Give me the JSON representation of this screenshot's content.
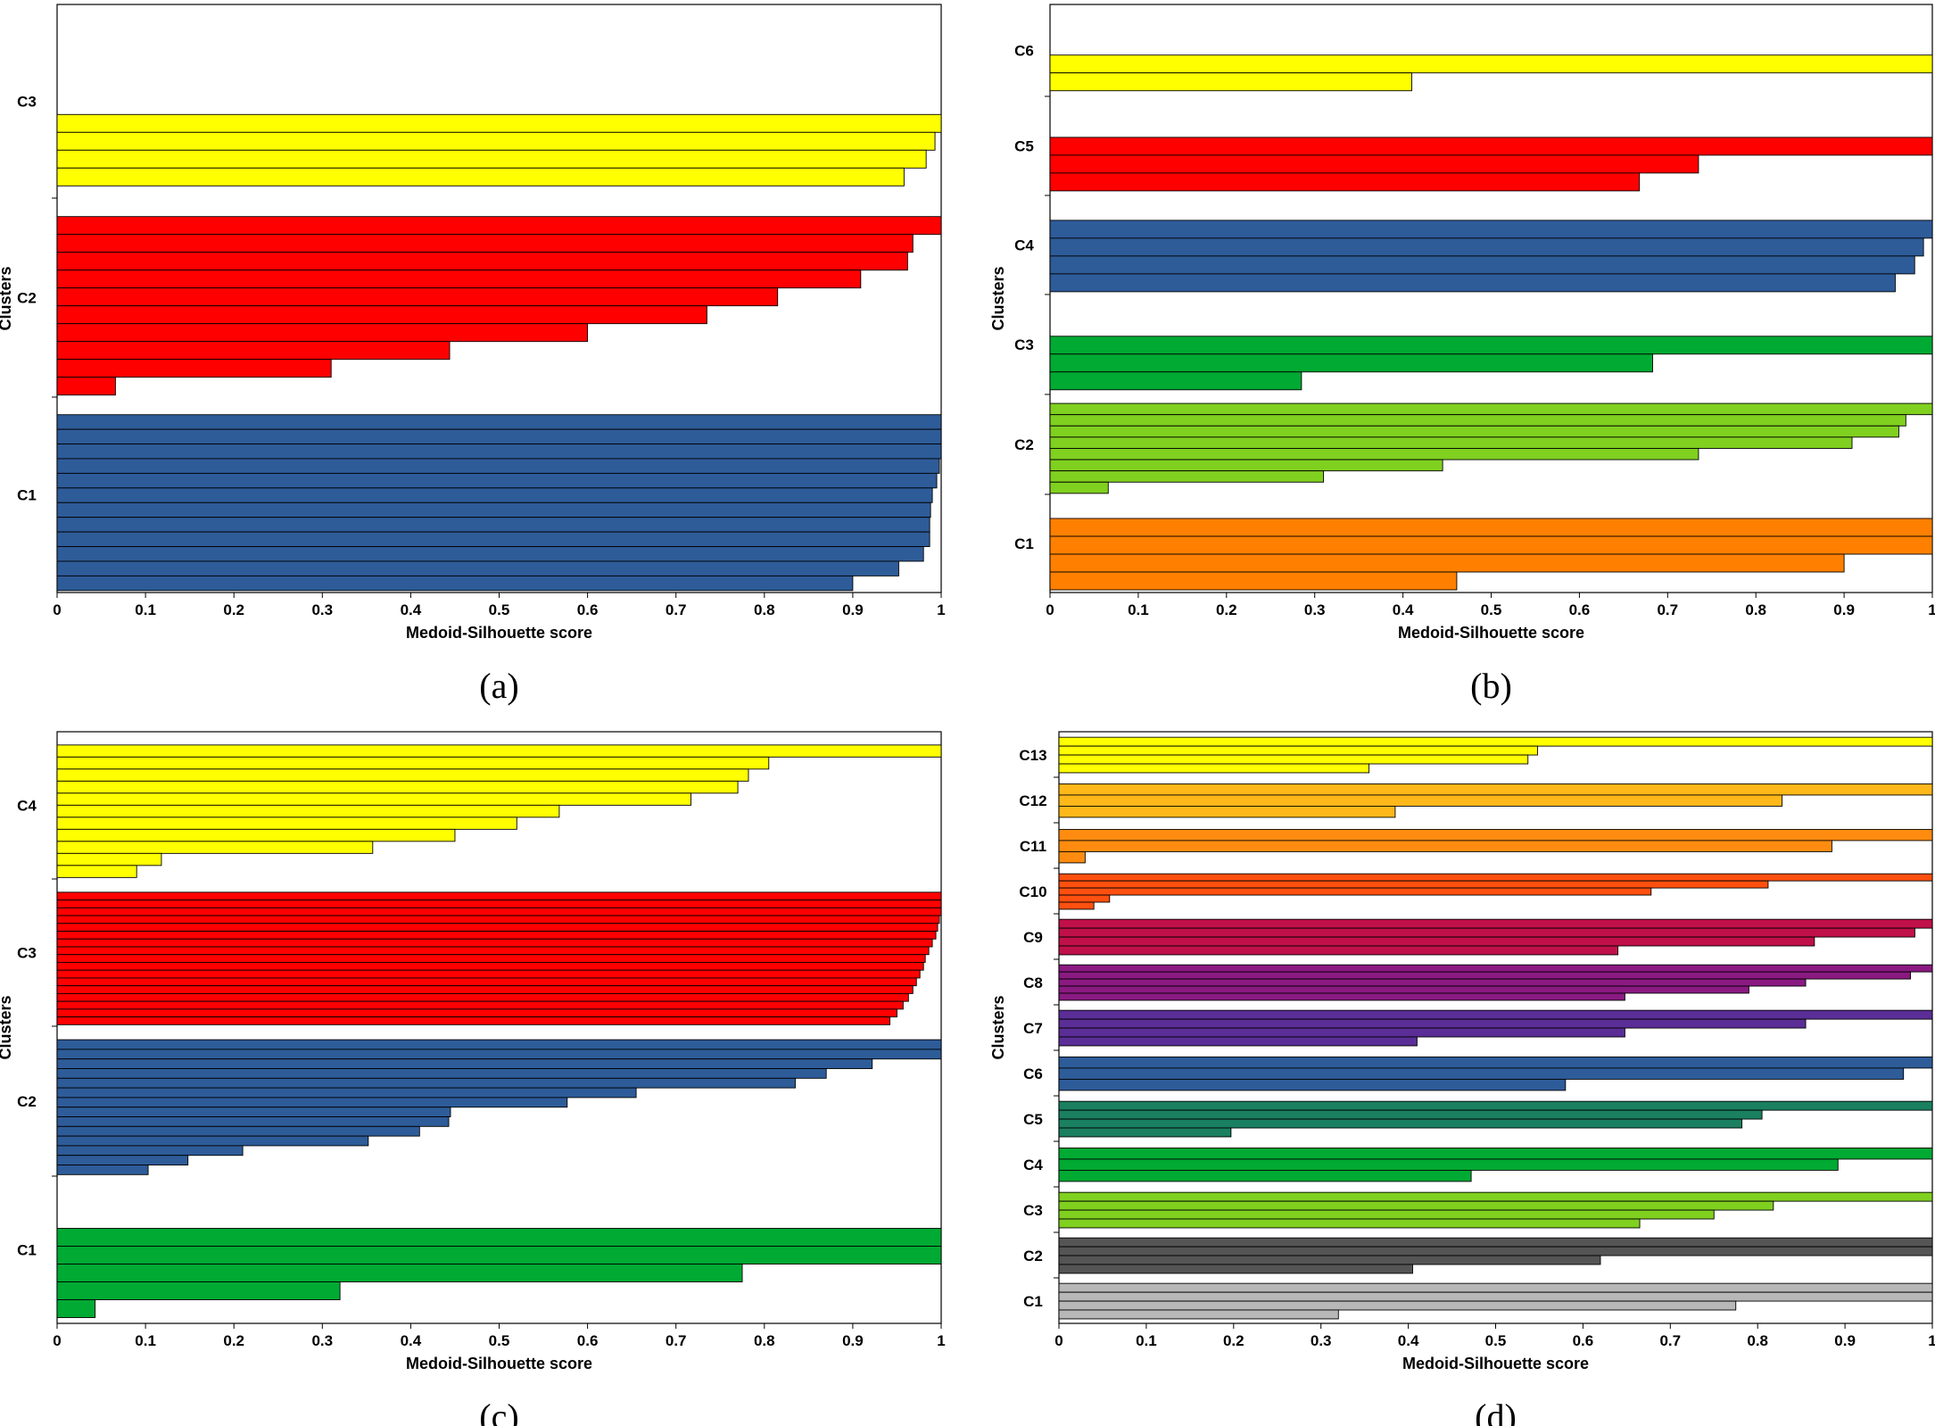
{
  "chart_data": [
    {
      "type": "bar",
      "caption": "(a)",
      "xlabel": "Medoid-Silhouette score",
      "ylabel": "Clusters",
      "xlim": [
        0,
        1
      ],
      "xticks": [
        "0",
        "0.1",
        "0.2",
        "0.3",
        "0.4",
        "0.5",
        "0.6",
        "0.7",
        "0.8",
        "0.9",
        "1"
      ],
      "clusters": [
        {
          "label": "C1",
          "color": "#2E5C99",
          "values": [
            1.0,
            1.0,
            1.0,
            0.998,
            0.995,
            0.99,
            0.988,
            0.987,
            0.987,
            0.98,
            0.952,
            0.9
          ]
        },
        {
          "label": "C2",
          "color": "#FF0000",
          "values": [
            1.0,
            0.968,
            0.962,
            0.909,
            0.815,
            0.735,
            0.6,
            0.444,
            0.31,
            0.066
          ]
        },
        {
          "label": "C3",
          "color": "#FFFF00",
          "values": [
            1.0,
            0.993,
            0.983,
            0.958
          ]
        }
      ]
    },
    {
      "type": "bar",
      "caption": "(b)",
      "xlabel": "Medoid-Silhouette score",
      "ylabel": "Clusters",
      "xlim": [
        0,
        1
      ],
      "xticks": [
        "0",
        "0.1",
        "0.2",
        "0.3",
        "0.4",
        "0.5",
        "0.6",
        "0.7",
        "0.8",
        "0.9",
        "1"
      ],
      "clusters": [
        {
          "label": "C1",
          "color": "#FF8000",
          "values": [
            1.0,
            1.0,
            0.9,
            0.461
          ]
        },
        {
          "label": "C2",
          "color": "#80D020",
          "values": [
            1.0,
            0.97,
            0.962,
            0.909,
            0.735,
            0.445,
            0.31,
            0.066
          ]
        },
        {
          "label": "C3",
          "color": "#00AA33",
          "values": [
            1.0,
            0.683,
            0.285
          ]
        },
        {
          "label": "C4",
          "color": "#2E5C99",
          "values": [
            1.0,
            0.99,
            0.98,
            0.958
          ]
        },
        {
          "label": "C5",
          "color": "#FF0000",
          "values": [
            1.0,
            0.735,
            0.668
          ]
        },
        {
          "label": "C6",
          "color": "#FFFF00",
          "values": [
            1.0,
            0.41
          ]
        }
      ]
    },
    {
      "type": "bar",
      "caption": "(c)",
      "xlabel": "Medoid-Silhouette score",
      "ylabel": "Clusters",
      "xlim": [
        0,
        1
      ],
      "xticks": [
        "0",
        "0.1",
        "0.2",
        "0.3",
        "0.4",
        "0.5",
        "0.6",
        "0.7",
        "0.8",
        "0.9",
        "1"
      ],
      "clusters": [
        {
          "label": "C1",
          "color": "#00AA33",
          "values": [
            1.0,
            1.0,
            0.775,
            0.32,
            0.043
          ]
        },
        {
          "label": "C2",
          "color": "#2E5C99",
          "values": [
            1.0,
            1.0,
            0.922,
            0.87,
            0.835,
            0.655,
            0.577,
            0.445,
            0.443,
            0.41,
            0.352,
            0.21,
            0.148,
            0.103
          ]
        },
        {
          "label": "C3",
          "color": "#FF0000",
          "values": [
            1.0,
            1.0,
            1.0,
            0.998,
            0.996,
            0.994,
            0.99,
            0.986,
            0.982,
            0.98,
            0.976,
            0.972,
            0.968,
            0.963,
            0.957,
            0.95,
            0.942
          ]
        },
        {
          "label": "C4",
          "color": "#FFFF00",
          "values": [
            1.0,
            0.805,
            0.782,
            0.77,
            0.717,
            0.568,
            0.52,
            0.45,
            0.357,
            0.118,
            0.09
          ]
        }
      ]
    },
    {
      "type": "bar",
      "caption": "(d)",
      "xlabel": "Medoid-Silhouette score",
      "ylabel": "Clusters",
      "xlim": [
        0,
        1
      ],
      "xticks": [
        "0",
        "0.1",
        "0.2",
        "0.3",
        "0.4",
        "0.5",
        "0.6",
        "0.7",
        "0.8",
        "0.9",
        "1"
      ],
      "clusters": [
        {
          "label": "C1",
          "color": "#B8B8B8",
          "values": [
            1.0,
            1.0,
            0.775,
            0.32
          ]
        },
        {
          "label": "C2",
          "color": "#555555",
          "values": [
            1.0,
            1.0,
            0.62,
            0.405
          ]
        },
        {
          "label": "C3",
          "color": "#80D020",
          "values": [
            1.0,
            0.818,
            0.75,
            0.665
          ]
        },
        {
          "label": "C4",
          "color": "#00AA33",
          "values": [
            1.0,
            0.892,
            0.472
          ]
        },
        {
          "label": "C5",
          "color": "#1A8060",
          "values": [
            1.0,
            0.805,
            0.782,
            0.197
          ]
        },
        {
          "label": "C6",
          "color": "#2E5C99",
          "values": [
            1.0,
            0.967,
            0.58
          ]
        },
        {
          "label": "C7",
          "color": "#5A2E96",
          "values": [
            1.0,
            0.855,
            0.648,
            0.41
          ]
        },
        {
          "label": "C8",
          "color": "#8A1A82",
          "values": [
            1.0,
            0.975,
            0.855,
            0.79,
            0.648
          ]
        },
        {
          "label": "C9",
          "color": "#C0104A",
          "values": [
            1.0,
            0.98,
            0.865,
            0.64
          ]
        },
        {
          "label": "C10",
          "color": "#FF5010",
          "values": [
            1.0,
            0.812,
            0.678,
            0.058,
            0.04
          ]
        },
        {
          "label": "C11",
          "color": "#FF8C10",
          "values": [
            1.0,
            0.885,
            0.03
          ]
        },
        {
          "label": "C12",
          "color": "#FFB81A",
          "values": [
            1.0,
            0.828,
            0.385
          ]
        },
        {
          "label": "C13",
          "color": "#FFFF00",
          "values": [
            1.0,
            0.548,
            0.537,
            0.355
          ]
        }
      ]
    }
  ]
}
